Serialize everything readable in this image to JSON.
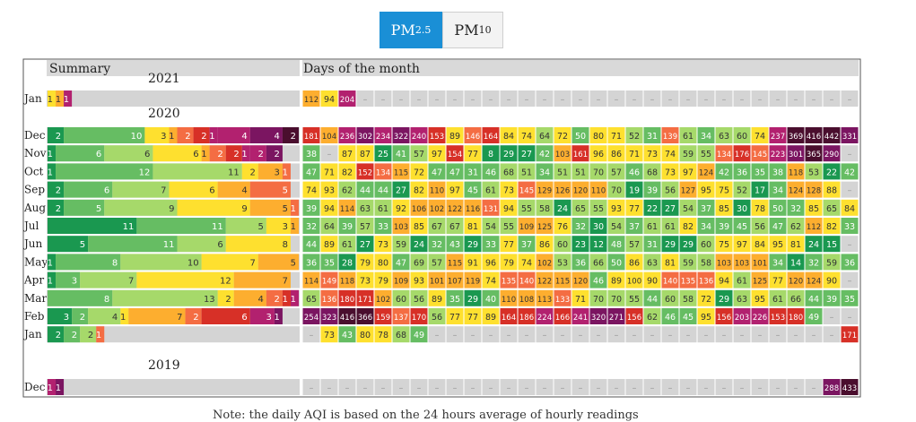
{
  "toggle": {
    "pm25": "PM",
    "pm25_sub": "2.5",
    "pm10": "PM",
    "pm10_sub": "10",
    "active": "pm25"
  },
  "headers": {
    "summary": "Summary",
    "days": "Days of the month"
  },
  "note": "Note: the daily AQI is based on the 24 hours average of hourly readings",
  "colors": {
    "c1": "#1a9850",
    "c2": "#66bd63",
    "c3": "#a6d96a",
    "c4": "#fee02f",
    "c5": "#fdae2f",
    "c6": "#f46d43",
    "c7": "#d73027",
    "c8": "#b2216f",
    "c9": "#7b1561",
    "c10": "#4a0e2e",
    "empty": "#d4d4d4"
  },
  "chart_data": {
    "type": "heatmap",
    "title": "",
    "xlabel": "Days of the month",
    "ylabel": "",
    "days": 31,
    "pollutant": "PM2.5",
    "years": [
      {
        "year": "2021",
        "months": [
          {
            "label": "Jan",
            "summary": [
              {
                "count": 1,
                "level": "c4"
              },
              {
                "count": 1,
                "level": "c5"
              },
              {
                "count": 1,
                "level": "c8"
              }
            ],
            "values": [
              112,
              94,
              204,
              null,
              null,
              null,
              null,
              null,
              null,
              null,
              null,
              null,
              null,
              null,
              null,
              null,
              null,
              null,
              null,
              null,
              null,
              null,
              null,
              null,
              null,
              null,
              null,
              null,
              null,
              null,
              null
            ]
          }
        ]
      },
      {
        "year": "2020",
        "months": [
          {
            "label": "Dec",
            "summary": [
              {
                "count": 2,
                "level": "c1"
              },
              {
                "count": 10,
                "level": "c2"
              },
              {
                "count": 3,
                "level": "c4"
              },
              {
                "count": 1,
                "level": "c5"
              },
              {
                "count": 2,
                "level": "c6"
              },
              {
                "count": 2,
                "level": "c7"
              },
              {
                "count": 1,
                "level": "c8"
              },
              {
                "count": 4,
                "level": "c8"
              },
              {
                "count": 4,
                "level": "c9"
              },
              {
                "count": 2,
                "level": "c10"
              }
            ],
            "values": [
              181,
              104,
              236,
              302,
              234,
              322,
              240,
              153,
              89,
              146,
              164,
              84,
              74,
              64,
              72,
              50,
              80,
              71,
              52,
              31,
              139,
              61,
              34,
              63,
              60,
              74,
              237,
              369,
              416,
              442,
              331
            ]
          },
          {
            "label": "Nov",
            "summary": [
              {
                "count": 1,
                "level": "c1"
              },
              {
                "count": 6,
                "level": "c2"
              },
              {
                "count": 6,
                "level": "c3"
              },
              {
                "count": 6,
                "level": "c4"
              },
              {
                "count": 1,
                "level": "c5"
              },
              {
                "count": 2,
                "level": "c6"
              },
              {
                "count": 2,
                "level": "c7"
              },
              {
                "count": 1,
                "level": "c8"
              },
              {
                "count": 2,
                "level": "c8"
              },
              {
                "count": 2,
                "level": "c9"
              }
            ],
            "values": [
              38,
              null,
              87,
              87,
              25,
              41,
              57,
              97,
              154,
              77,
              8,
              29,
              27,
              42,
              103,
              161,
              96,
              86,
              71,
              73,
              74,
              59,
              55,
              134,
              176,
              145,
              223,
              301,
              365,
              290,
              null
            ]
          },
          {
            "label": "Oct",
            "summary": [
              {
                "count": 1,
                "level": "c1"
              },
              {
                "count": 12,
                "level": "c2"
              },
              {
                "count": 11,
                "level": "c3"
              },
              {
                "count": 2,
                "level": "c4"
              },
              {
                "count": 3,
                "level": "c5"
              },
              {
                "count": 1,
                "level": "c6"
              }
            ],
            "values": [
              47,
              71,
              82,
              152,
              134,
              115,
              72,
              47,
              47,
              31,
              46,
              68,
              51,
              34,
              51,
              51,
              70,
              57,
              46,
              68,
              73,
              97,
              124,
              42,
              36,
              35,
              38,
              118,
              53,
              22,
              42
            ]
          },
          {
            "label": "Sep",
            "summary": [
              {
                "count": 2,
                "level": "c1"
              },
              {
                "count": 6,
                "level": "c2"
              },
              {
                "count": 7,
                "level": "c3"
              },
              {
                "count": 6,
                "level": "c4"
              },
              {
                "count": 4,
                "level": "c5"
              },
              {
                "count": 5,
                "level": "c6"
              }
            ],
            "values": [
              74,
              93,
              62,
              44,
              44,
              27,
              82,
              110,
              97,
              45,
              61,
              73,
              145,
              129,
              126,
              120,
              110,
              70,
              19,
              39,
              56,
              127,
              95,
              75,
              52,
              17,
              34,
              124,
              128,
              88,
              null
            ]
          },
          {
            "label": "Aug",
            "summary": [
              {
                "count": 2,
                "level": "c1"
              },
              {
                "count": 5,
                "level": "c2"
              },
              {
                "count": 9,
                "level": "c3"
              },
              {
                "count": 9,
                "level": "c4"
              },
              {
                "count": 5,
                "level": "c5"
              },
              {
                "count": 1,
                "level": "c6"
              }
            ],
            "values": [
              39,
              94,
              114,
              63,
              61,
              92,
              106,
              102,
              122,
              116,
              131,
              94,
              55,
              58,
              24,
              65,
              55,
              93,
              77,
              22,
              27,
              54,
              37,
              85,
              30,
              78,
              50,
              32,
              85,
              65,
              84
            ]
          },
          {
            "label": "Jul",
            "summary": [
              {
                "count": 11,
                "level": "c1"
              },
              {
                "count": 11,
                "level": "c2"
              },
              {
                "count": 5,
                "level": "c3"
              },
              {
                "count": 3,
                "level": "c4"
              },
              {
                "count": 1,
                "level": "c5"
              }
            ],
            "values": [
              32,
              64,
              39,
              57,
              33,
              103,
              85,
              67,
              67,
              81,
              54,
              55,
              109,
              125,
              76,
              32,
              30,
              54,
              37,
              61,
              61,
              82,
              34,
              39,
              45,
              56,
              47,
              62,
              112,
              82,
              33
            ]
          },
          {
            "label": "Jun",
            "summary": [
              {
                "count": 5,
                "level": "c1"
              },
              {
                "count": 11,
                "level": "c2"
              },
              {
                "count": 6,
                "level": "c3"
              },
              {
                "count": 8,
                "level": "c4"
              }
            ],
            "values": [
              44,
              89,
              61,
              27,
              73,
              59,
              24,
              32,
              43,
              29,
              33,
              77,
              37,
              86,
              60,
              23,
              12,
              48,
              57,
              31,
              29,
              29,
              60,
              75,
              97,
              84,
              95,
              81,
              24,
              15,
              null
            ]
          },
          {
            "label": "May",
            "summary": [
              {
                "count": 1,
                "level": "c1"
              },
              {
                "count": 8,
                "level": "c2"
              },
              {
                "count": 10,
                "level": "c3"
              },
              {
                "count": 7,
                "level": "c4"
              },
              {
                "count": 5,
                "level": "c5"
              }
            ],
            "values": [
              36,
              35,
              28,
              79,
              80,
              47,
              69,
              57,
              115,
              91,
              96,
              79,
              74,
              102,
              53,
              36,
              66,
              50,
              86,
              63,
              81,
              59,
              58,
              103,
              103,
              101,
              34,
              14,
              32,
              59,
              36
            ]
          },
          {
            "label": "Apr",
            "summary": [
              {
                "count": 1,
                "level": "c1"
              },
              {
                "count": 3,
                "level": "c2"
              },
              {
                "count": 7,
                "level": "c3"
              },
              {
                "count": 12,
                "level": "c4"
              },
              {
                "count": 7,
                "level": "c5"
              }
            ],
            "values": [
              114,
              149,
              118,
              73,
              79,
              109,
              93,
              101,
              107,
              119,
              74,
              135,
              140,
              122,
              115,
              120,
              46,
              89,
              100,
              90,
              140,
              135,
              136,
              94,
              61,
              125,
              77,
              120,
              124,
              90,
              null
            ]
          },
          {
            "label": "Mar",
            "summary": [
              {
                "count": 8,
                "level": "c2"
              },
              {
                "count": 13,
                "level": "c3"
              },
              {
                "count": 2,
                "level": "c4"
              },
              {
                "count": 4,
                "level": "c5"
              },
              {
                "count": 2,
                "level": "c6"
              },
              {
                "count": 1,
                "level": "c7"
              },
              {
                "count": 1,
                "level": "c8"
              }
            ],
            "values": [
              65,
              136,
              180,
              171,
              102,
              60,
              56,
              89,
              35,
              29,
              40,
              110,
              108,
              113,
              133,
              71,
              70,
              70,
              55,
              44,
              60,
              58,
              72,
              29,
              63,
              95,
              61,
              66,
              44,
              39,
              35
            ]
          },
          {
            "label": "Feb",
            "summary": [
              {
                "count": 3,
                "level": "c1"
              },
              {
                "count": 2,
                "level": "c2"
              },
              {
                "count": 4,
                "level": "c3"
              },
              {
                "count": 1,
                "level": "c4"
              },
              {
                "count": 7,
                "level": "c5"
              },
              {
                "count": 2,
                "level": "c6"
              },
              {
                "count": 6,
                "level": "c7"
              },
              {
                "count": 3,
                "level": "c8"
              },
              {
                "count": 1,
                "level": "c9"
              }
            ],
            "values": [
              254,
              323,
              416,
              366,
              159,
              137,
              170,
              56,
              77,
              77,
              89,
              164,
              186,
              224,
              166,
              241,
              320,
              271,
              156,
              62,
              46,
              45,
              95,
              156,
              203,
              226,
              153,
              180,
              49,
              null,
              null
            ]
          },
          {
            "label": "Jan",
            "summary": [
              {
                "count": 2,
                "level": "c1"
              },
              {
                "count": 2,
                "level": "c2"
              },
              {
                "count": 2,
                "level": "c3"
              },
              {
                "count": 1,
                "level": "c6"
              }
            ],
            "values": [
              null,
              73,
              43,
              80,
              78,
              68,
              49,
              null,
              null,
              null,
              null,
              null,
              null,
              null,
              null,
              null,
              null,
              null,
              null,
              null,
              null,
              null,
              null,
              null,
              null,
              null,
              null,
              null,
              null,
              null,
              171
            ]
          }
        ]
      },
      {
        "year": "2019",
        "months": [
          {
            "label": "Dec",
            "summary": [
              {
                "count": 1,
                "level": "c8"
              },
              {
                "count": 1,
                "level": "c9"
              }
            ],
            "values": [
              null,
              null,
              null,
              null,
              null,
              null,
              null,
              null,
              null,
              null,
              null,
              null,
              null,
              null,
              null,
              null,
              null,
              null,
              null,
              null,
              null,
              null,
              null,
              null,
              null,
              null,
              null,
              null,
              null,
              288,
              433
            ]
          }
        ]
      }
    ]
  }
}
